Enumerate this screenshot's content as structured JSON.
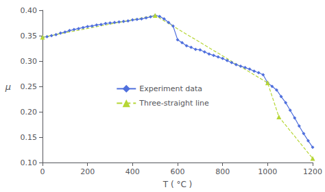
{
  "chart_data": {
    "type": "line",
    "xlabel": "T ( °C )",
    "ylabel": "μ",
    "series": [
      {
        "name": "Experiment data",
        "x": [
          0,
          20,
          40,
          60,
          80,
          100,
          120,
          140,
          160,
          180,
          200,
          220,
          240,
          260,
          280,
          300,
          320,
          340,
          360,
          380,
          400,
          420,
          440,
          460,
          480,
          500,
          520,
          540,
          560,
          580,
          600,
          620,
          640,
          660,
          680,
          700,
          720,
          740,
          760,
          780,
          800,
          820,
          840,
          860,
          880,
          900,
          920,
          940,
          960,
          980,
          1000,
          1020,
          1040,
          1060,
          1080,
          1100,
          1120,
          1140,
          1160,
          1180,
          1200
        ],
        "values": [
          0.347,
          0.348,
          0.35,
          0.352,
          0.355,
          0.357,
          0.36,
          0.362,
          0.364,
          0.366,
          0.368,
          0.369,
          0.371,
          0.372,
          0.374,
          0.375,
          0.376,
          0.377,
          0.378,
          0.379,
          0.381,
          0.382,
          0.383,
          0.385,
          0.387,
          0.39,
          0.388,
          0.383,
          0.376,
          0.369,
          0.342,
          0.336,
          0.33,
          0.327,
          0.323,
          0.322,
          0.318,
          0.314,
          0.311,
          0.308,
          0.305,
          0.301,
          0.297,
          0.293,
          0.29,
          0.287,
          0.284,
          0.28,
          0.277,
          0.273,
          0.257,
          0.25,
          0.243,
          0.23,
          0.218,
          0.203,
          0.188,
          0.172,
          0.157,
          0.143,
          0.13
        ],
        "line_style": "solid",
        "marker": "diamond"
      },
      {
        "name": "Three-straight line",
        "x": [
          0,
          500,
          1000,
          1050,
          1200
        ],
        "values": [
          0.347,
          0.39,
          0.257,
          0.19,
          0.108
        ],
        "line_style": "dashed",
        "marker": "triangle"
      }
    ],
    "xlim": [
      0,
      1200
    ],
    "xticks": [
      0,
      200,
      400,
      600,
      800,
      1000,
      1200
    ],
    "ylim": [
      0.1,
      0.4
    ],
    "yticks": [
      {
        "value": 0.1,
        "label": "0.10"
      },
      0.15,
      {
        "value": 0.2,
        "label": "0.20"
      },
      0.25,
      {
        "value": 0.3,
        "label": "0.30"
      },
      0.35,
      {
        "value": 0.4,
        "label": "0.40"
      }
    ],
    "grid": false,
    "legend": "center"
  }
}
